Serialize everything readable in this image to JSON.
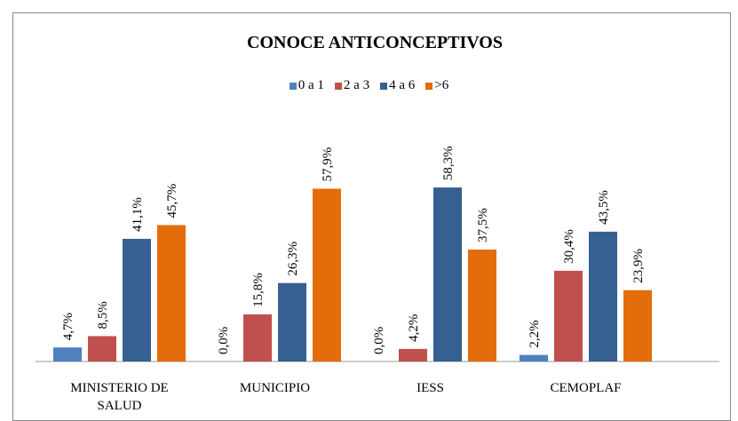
{
  "chart_data": {
    "type": "bar",
    "title": "CONOCE ANTICONCEPTIVOS",
    "categories": [
      "MINISTERIO DE SALUD",
      "MUNICIPIO",
      "IESS",
      "CEMOPLAF"
    ],
    "series": [
      {
        "name": "0 a 1",
        "color": "#4f81bd",
        "values": [
          4.7,
          0,
          0,
          2.2
        ],
        "value_labels": [
          "4,7%",
          "0,0%",
          "0,0%",
          "2,2%"
        ]
      },
      {
        "name": "2 a 3",
        "color": "#c0504d",
        "values": [
          8.5,
          15.8,
          4.2,
          30.4
        ],
        "value_labels": [
          "8,5%",
          "15,8%",
          "4,2%",
          "30,4%"
        ]
      },
      {
        "name": "4 a 6",
        "color": "#376092",
        "values": [
          41.1,
          26.3,
          58.3,
          43.5
        ],
        "value_labels": [
          "41,1%",
          "26,3%",
          "58,3%",
          "43,5%"
        ]
      },
      {
        "name": ">6",
        "color": "#e46c0a",
        "values": [
          45.7,
          57.9,
          37.5,
          23.9
        ],
        "value_labels": [
          "45,7%",
          "57,9%",
          "37,5%",
          "23,9%"
        ]
      }
    ]
  }
}
